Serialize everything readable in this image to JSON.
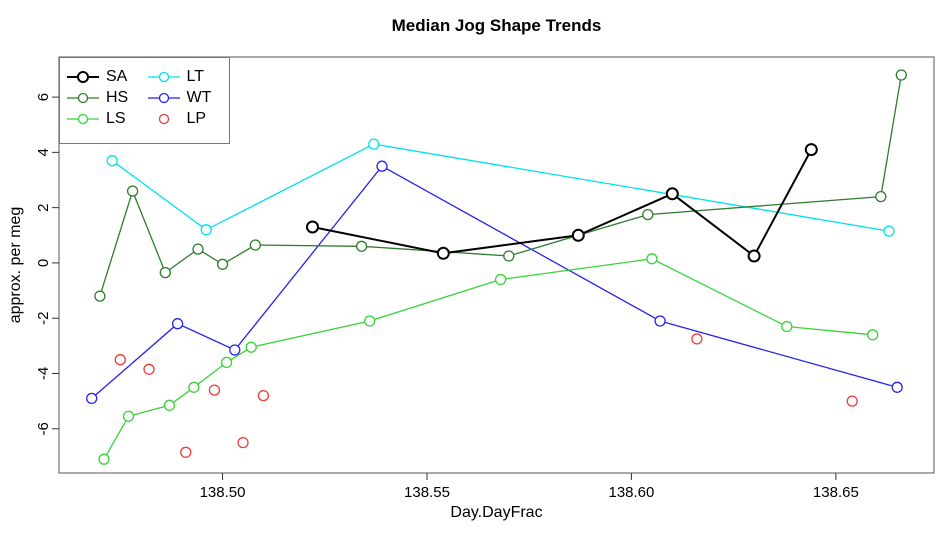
{
  "chart_data": {
    "type": "line",
    "title": "Median Jog Shape Trends",
    "xlabel": "Day.DayFrac",
    "ylabel": "approx. per meg",
    "xlim": [
      138.46,
      138.674
    ],
    "ylim": [
      -7.6,
      7.45
    ],
    "x_ticks": [
      138.5,
      138.55,
      138.6,
      138.65
    ],
    "x_tick_labels": [
      "138.50",
      "138.55",
      "138.60",
      "138.65"
    ],
    "y_ticks": [
      -6,
      -4,
      -2,
      0,
      2,
      4,
      6
    ],
    "grid": false,
    "marker": "open-circle",
    "legend_position": "top-left",
    "legend_columns": [
      [
        "SA",
        "HS",
        "LS"
      ],
      [
        "LT",
        "WT",
        "LP"
      ]
    ],
    "series": [
      {
        "name": "LT",
        "color": "#00e0ee",
        "line": true,
        "line_width": 1.3,
        "points": [
          [
            138.473,
            3.7
          ],
          [
            138.496,
            1.2
          ],
          [
            138.537,
            4.3
          ],
          [
            138.663,
            1.15
          ]
        ]
      },
      {
        "name": "WT",
        "color": "#2323ee",
        "line": true,
        "line_width": 1.3,
        "points": [
          [
            138.468,
            -4.9
          ],
          [
            138.489,
            -2.2
          ],
          [
            138.503,
            -3.15
          ],
          [
            138.539,
            3.5
          ],
          [
            138.607,
            -2.1
          ],
          [
            138.665,
            -4.5
          ]
        ]
      },
      {
        "name": "LS",
        "color": "#36d336",
        "line": true,
        "line_width": 1.3,
        "points": [
          [
            138.471,
            -7.1
          ],
          [
            138.477,
            -5.55
          ],
          [
            138.487,
            -5.15
          ],
          [
            138.493,
            -4.5
          ],
          [
            138.501,
            -3.6
          ],
          [
            138.507,
            -3.05
          ],
          [
            138.536,
            -2.1
          ],
          [
            138.568,
            -0.6
          ],
          [
            138.605,
            0.15
          ],
          [
            138.638,
            -2.3
          ],
          [
            138.659,
            -2.6
          ]
        ]
      },
      {
        "name": "LP",
        "color": "#ee3b3b",
        "line": false,
        "line_width": 1.3,
        "points": [
          [
            138.475,
            -3.5
          ],
          [
            138.482,
            -3.85
          ],
          [
            138.491,
            -6.85
          ],
          [
            138.498,
            -4.6
          ],
          [
            138.505,
            -6.5
          ],
          [
            138.51,
            -4.8
          ],
          [
            138.616,
            -2.75
          ],
          [
            138.654,
            -5.0
          ]
        ]
      },
      {
        "name": "HS",
        "color": "#2e7d2e",
        "line": true,
        "line_width": 1.3,
        "points": [
          [
            138.47,
            -1.2
          ],
          [
            138.478,
            2.6
          ],
          [
            138.486,
            -0.35
          ],
          [
            138.494,
            0.5
          ],
          [
            138.5,
            -0.05
          ],
          [
            138.508,
            0.65
          ],
          [
            138.534,
            0.6
          ],
          [
            138.57,
            0.25
          ],
          [
            138.604,
            1.75
          ],
          [
            138.661,
            2.4
          ],
          [
            138.666,
            6.8
          ]
        ]
      },
      {
        "name": "SA",
        "color": "#000000",
        "line": true,
        "line_width": 2,
        "points": [
          [
            138.522,
            1.3
          ],
          [
            138.554,
            0.35
          ],
          [
            138.587,
            1.0
          ],
          [
            138.61,
            2.5
          ],
          [
            138.63,
            0.25
          ],
          [
            138.644,
            4.1
          ]
        ]
      }
    ]
  }
}
